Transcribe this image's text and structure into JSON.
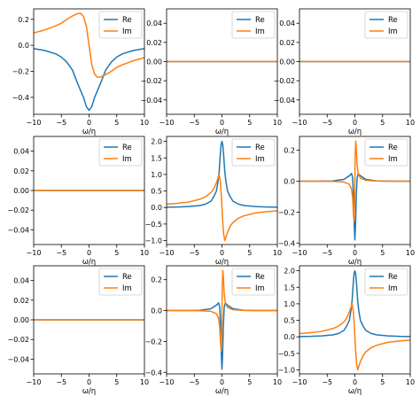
{
  "colors": {
    "re": "#1f77b4",
    "im": "#ff7f0e"
  },
  "chart_data": [
    {
      "type": "line",
      "panel": "row1-col1",
      "xlabel": "ω/η",
      "xlim": [
        -10,
        10
      ],
      "ylim": [
        -0.53,
        0.28
      ],
      "xticks": [
        -10,
        -5,
        0,
        5,
        10
      ],
      "yticks": [
        -0.4,
        -0.2,
        0.0,
        0.2
      ],
      "legend": "upper right",
      "grid": false,
      "series": [
        {
          "name": "Re",
          "x": [
            -10,
            -8,
            -6,
            -5,
            -4,
            -3,
            -2,
            -1.5,
            -1,
            -0.5,
            0,
            0.5,
            1,
            1.5,
            2,
            3,
            4,
            5,
            6,
            8,
            10
          ],
          "y": [
            -0.025,
            -0.04,
            -0.066,
            -0.09,
            -0.13,
            -0.19,
            -0.3,
            -0.35,
            -0.4,
            -0.47,
            -0.5,
            -0.47,
            -0.4,
            -0.35,
            -0.3,
            -0.19,
            -0.13,
            -0.09,
            -0.066,
            -0.04,
            -0.025
          ]
        },
        {
          "name": "Im",
          "x": [
            -10,
            -8,
            -6,
            -5,
            -4,
            -3,
            -2,
            -1.5,
            -1,
            -0.5,
            0,
            0.5,
            1,
            1.5,
            2,
            3,
            4,
            5,
            6,
            8,
            10
          ],
          "y": [
            0.095,
            0.118,
            0.15,
            0.17,
            0.2,
            0.225,
            0.245,
            0.245,
            0.22,
            0.15,
            0.0,
            -0.15,
            -0.22,
            -0.245,
            -0.245,
            -0.225,
            -0.2,
            -0.17,
            -0.15,
            -0.118,
            -0.095
          ]
        }
      ]
    },
    {
      "type": "line",
      "panel": "row1-col2",
      "xlabel": "ω/η",
      "xlim": [
        -10,
        10
      ],
      "ylim": [
        -0.055,
        0.055
      ],
      "xticks": [
        -10,
        -5,
        0,
        5,
        10
      ],
      "yticks": [
        -0.04,
        -0.02,
        0.0,
        0.02,
        0.04
      ],
      "legend": "upper right",
      "grid": false,
      "series": [
        {
          "name": "Re",
          "x": [
            -10,
            10
          ],
          "y": [
            0,
            0
          ]
        },
        {
          "name": "Im",
          "x": [
            -10,
            10
          ],
          "y": [
            0,
            0
          ]
        }
      ]
    },
    {
      "type": "line",
      "panel": "row1-col3",
      "xlabel": "ω/η",
      "xlim": [
        -10,
        10
      ],
      "ylim": [
        -0.055,
        0.055
      ],
      "xticks": [
        -10,
        -5,
        0,
        5,
        10
      ],
      "yticks": [
        -0.04,
        -0.02,
        0.0,
        0.02,
        0.04
      ],
      "legend": "upper right",
      "grid": false,
      "series": [
        {
          "name": "Re",
          "x": [
            -10,
            10
          ],
          "y": [
            0,
            0
          ]
        },
        {
          "name": "Im",
          "x": [
            -10,
            10
          ],
          "y": [
            0,
            0
          ]
        }
      ]
    },
    {
      "type": "line",
      "panel": "row2-col1",
      "xlabel": "ω/η",
      "xlim": [
        -10,
        10
      ],
      "ylim": [
        -0.055,
        0.055
      ],
      "xticks": [
        -10,
        -5,
        0,
        5,
        10
      ],
      "yticks": [
        -0.04,
        -0.02,
        0.0,
        0.02,
        0.04
      ],
      "legend": "upper right",
      "grid": false,
      "series": [
        {
          "name": "Re",
          "x": [
            -10,
            10
          ],
          "y": [
            0,
            0
          ]
        },
        {
          "name": "Im",
          "x": [
            -10,
            10
          ],
          "y": [
            0,
            0
          ]
        }
      ]
    },
    {
      "type": "line",
      "panel": "row2-col2",
      "xlabel": "ω/η",
      "xlim": [
        -10,
        10
      ],
      "ylim": [
        -1.12,
        2.15
      ],
      "xticks": [
        -10,
        -5,
        0,
        5,
        10
      ],
      "yticks": [
        -1.0,
        -0.5,
        0.0,
        0.5,
        1.0,
        1.5,
        2.0
      ],
      "legend": "upper right",
      "grid": false,
      "series": [
        {
          "name": "Re",
          "x": [
            -10,
            -8,
            -6,
            -4,
            -3,
            -2,
            -1.5,
            -1,
            -0.7,
            -0.5,
            -0.3,
            -0.15,
            0,
            0.15,
            0.3,
            0.5,
            0.7,
            1,
            1.5,
            2,
            3,
            4,
            6,
            8,
            10
          ],
          "y": [
            0.01,
            0.015,
            0.03,
            0.06,
            0.1,
            0.19,
            0.32,
            0.5,
            0.8,
            1.1,
            1.6,
            1.9,
            2.0,
            1.9,
            1.6,
            1.1,
            0.8,
            0.5,
            0.32,
            0.19,
            0.1,
            0.06,
            0.03,
            0.015,
            0.01
          ]
        },
        {
          "name": "Im",
          "x": [
            -10,
            -8,
            -6,
            -4,
            -3,
            -2,
            -1.5,
            -1,
            -0.7,
            -0.5,
            -0.3,
            -0.15,
            0,
            0.15,
            0.3,
            0.5,
            0.7,
            1,
            1.5,
            2,
            3,
            4,
            6,
            8,
            10
          ],
          "y": [
            0.1,
            0.125,
            0.165,
            0.25,
            0.32,
            0.45,
            0.56,
            0.75,
            0.9,
            1.0,
            0.8,
            0.45,
            0.0,
            -0.45,
            -0.8,
            -1.0,
            -0.9,
            -0.75,
            -0.56,
            -0.45,
            -0.32,
            -0.25,
            -0.165,
            -0.125,
            -0.1
          ]
        }
      ]
    },
    {
      "type": "line",
      "panel": "row2-col3",
      "xlabel": "ω/η",
      "xlim": [
        -10,
        10
      ],
      "ylim": [
        -0.41,
        0.29
      ],
      "xticks": [
        -10,
        -5,
        0,
        5,
        10
      ],
      "yticks": [
        -0.4,
        -0.2,
        0.0,
        0.2
      ],
      "legend": "upper right",
      "grid": false,
      "series": [
        {
          "name": "Re",
          "x": [
            -10,
            -6,
            -4,
            -2,
            -1,
            -0.6,
            -0.4,
            -0.25,
            -0.1,
            0,
            0.1,
            0.25,
            0.4,
            0.6,
            1,
            2,
            4,
            6,
            10
          ],
          "y": [
            0.0,
            0.0,
            0.002,
            0.012,
            0.035,
            0.05,
            0.02,
            -0.1,
            -0.3,
            -0.38,
            -0.3,
            -0.1,
            0.02,
            0.05,
            0.035,
            0.012,
            0.002,
            0.0,
            0.0
          ]
        },
        {
          "name": "Im",
          "x": [
            -10,
            -6,
            -4,
            -2,
            -1,
            -0.6,
            -0.4,
            -0.25,
            -0.15,
            -0.05,
            0,
            0.05,
            0.15,
            0.25,
            0.4,
            0.6,
            1,
            2,
            4,
            6,
            10
          ],
          "y": [
            0.0,
            0.0,
            -0.001,
            -0.005,
            -0.02,
            -0.05,
            -0.11,
            -0.22,
            -0.26,
            -0.15,
            0.0,
            0.15,
            0.26,
            0.22,
            0.11,
            0.05,
            0.02,
            0.005,
            0.001,
            0.0,
            0.0
          ]
        }
      ]
    },
    {
      "type": "line",
      "panel": "row3-col1",
      "xlabel": "ω/η",
      "xlim": [
        -10,
        10
      ],
      "ylim": [
        -0.055,
        0.055
      ],
      "xticks": [
        -10,
        -5,
        0,
        5,
        10
      ],
      "yticks": [
        -0.04,
        -0.02,
        0.0,
        0.02,
        0.04
      ],
      "legend": "upper right",
      "grid": false,
      "series": [
        {
          "name": "Re",
          "x": [
            -10,
            10
          ],
          "y": [
            0,
            0
          ]
        },
        {
          "name": "Im",
          "x": [
            -10,
            10
          ],
          "y": [
            0,
            0
          ]
        }
      ]
    },
    {
      "type": "line",
      "panel": "row3-col2",
      "xlabel": "ω/η",
      "xlim": [
        -10,
        10
      ],
      "ylim": [
        -0.41,
        0.29
      ],
      "xticks": [
        -10,
        -5,
        0,
        5,
        10
      ],
      "yticks": [
        -0.4,
        -0.2,
        0.0,
        0.2
      ],
      "legend": "upper right",
      "grid": false,
      "series": [
        {
          "name": "Re",
          "x": [
            -10,
            -6,
            -4,
            -2,
            -1,
            -0.6,
            -0.4,
            -0.25,
            -0.1,
            0,
            0.1,
            0.25,
            0.4,
            0.6,
            1,
            2,
            4,
            6,
            10
          ],
          "y": [
            0.0,
            0.0,
            0.002,
            0.012,
            0.035,
            0.05,
            0.02,
            -0.1,
            -0.3,
            -0.38,
            -0.3,
            -0.1,
            0.02,
            0.05,
            0.035,
            0.012,
            0.002,
            0.0,
            0.0
          ]
        },
        {
          "name": "Im",
          "x": [
            -10,
            -6,
            -4,
            -2,
            -1,
            -0.6,
            -0.4,
            -0.25,
            -0.15,
            -0.05,
            0,
            0.05,
            0.15,
            0.25,
            0.4,
            0.6,
            1,
            2,
            4,
            6,
            10
          ],
          "y": [
            0.0,
            0.0,
            -0.001,
            -0.005,
            -0.02,
            -0.05,
            -0.11,
            -0.22,
            -0.26,
            -0.15,
            0.0,
            0.15,
            0.26,
            0.22,
            0.11,
            0.05,
            0.02,
            0.005,
            0.001,
            0.0,
            0.0
          ]
        }
      ]
    },
    {
      "type": "line",
      "panel": "row3-col3",
      "xlabel": "ω/η",
      "xlim": [
        -10,
        10
      ],
      "ylim": [
        -1.12,
        2.15
      ],
      "xticks": [
        -10,
        -5,
        0,
        5,
        10
      ],
      "yticks": [
        -1.0,
        -0.5,
        0.0,
        0.5,
        1.0,
        1.5,
        2.0
      ],
      "legend": "upper right",
      "grid": false,
      "series": [
        {
          "name": "Re",
          "x": [
            -10,
            -8,
            -6,
            -4,
            -3,
            -2,
            -1.5,
            -1,
            -0.7,
            -0.5,
            -0.3,
            -0.15,
            0,
            0.15,
            0.3,
            0.5,
            0.7,
            1,
            1.5,
            2,
            3,
            4,
            6,
            8,
            10
          ],
          "y": [
            0.01,
            0.015,
            0.03,
            0.06,
            0.1,
            0.19,
            0.32,
            0.5,
            0.8,
            1.1,
            1.6,
            1.9,
            2.0,
            1.9,
            1.6,
            1.1,
            0.8,
            0.5,
            0.32,
            0.19,
            0.1,
            0.06,
            0.03,
            0.015,
            0.01
          ]
        },
        {
          "name": "Im",
          "x": [
            -10,
            -8,
            -6,
            -4,
            -3,
            -2,
            -1.5,
            -1,
            -0.7,
            -0.5,
            -0.3,
            -0.15,
            0,
            0.15,
            0.3,
            0.5,
            0.7,
            1,
            1.5,
            2,
            3,
            4,
            6,
            8,
            10
          ],
          "y": [
            0.1,
            0.125,
            0.165,
            0.25,
            0.32,
            0.45,
            0.56,
            0.75,
            0.9,
            1.0,
            0.8,
            0.45,
            0.0,
            -0.45,
            -0.8,
            -1.0,
            -0.9,
            -0.75,
            -0.56,
            -0.45,
            -0.32,
            -0.25,
            -0.165,
            -0.125,
            -0.1
          ]
        }
      ]
    }
  ]
}
